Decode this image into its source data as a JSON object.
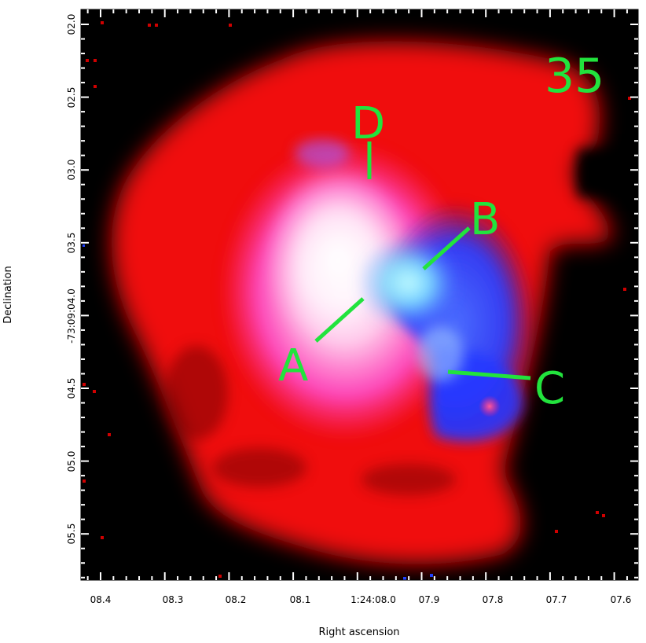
{
  "panel_number": "35",
  "axes": {
    "x_title": "Right ascension",
    "y_title": "Declination",
    "x_ticks": [
      "08.4",
      "08.3",
      "08.2",
      "08.1",
      "1:24:08.0",
      "07.9",
      "07.8",
      "07.7",
      "07.6"
    ],
    "y_ticks": [
      "02.0",
      "02.5",
      "03.0",
      "03.5",
      "-73:09:04.0",
      "04.5",
      "05.0",
      "05.5"
    ]
  },
  "markers": [
    {
      "id": "A",
      "label": "A"
    },
    {
      "id": "B",
      "label": "B"
    },
    {
      "id": "C",
      "label": "C"
    },
    {
      "id": "D",
      "label": "D"
    }
  ],
  "colors": {
    "annotation": "#22e33d",
    "emission_red": "#ff0a0a",
    "emission_blue": "#1f3cff",
    "background": "#000000"
  }
}
